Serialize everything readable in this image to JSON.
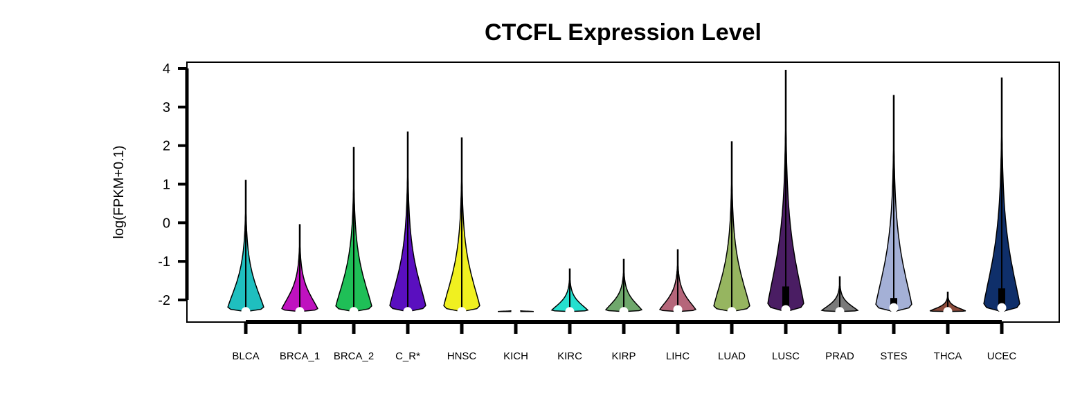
{
  "chart_data": {
    "type": "violin",
    "title": "CTCFL Expression Level",
    "ylabel": "log(FPKM+0.1)",
    "xlabel": "",
    "ylim": [
      -2.55,
      4.2
    ],
    "yticks": [
      -2,
      -1,
      0,
      1,
      2,
      3,
      4
    ],
    "grid": false,
    "legend": "none",
    "groups": [
      {
        "name": "BLCA",
        "color": "#1fbfbf",
        "min": -2.3,
        "max": 1.1,
        "q1": -2.3,
        "median": -2.3,
        "q3": -2.3,
        "peak_width": 0.85
      },
      {
        "name": "BRCA_1",
        "color": "#bf12bf",
        "min": -2.3,
        "max": -0.05,
        "q1": -2.3,
        "median": -2.3,
        "q3": -2.3,
        "peak_width": 0.85
      },
      {
        "name": "BRCA_2",
        "color": "#1fbf57",
        "min": -2.3,
        "max": 1.95,
        "q1": -2.3,
        "median": -2.3,
        "q3": -2.3,
        "peak_width": 0.85
      },
      {
        "name": "C_R*",
        "color": "#5a0fbf",
        "min": -2.3,
        "max": 2.35,
        "q1": -2.3,
        "median": -2.3,
        "q3": -2.3,
        "peak_width": 0.85
      },
      {
        "name": "HNSC",
        "color": "#f0f020",
        "min": -2.3,
        "max": 2.2,
        "q1": -2.3,
        "median": -2.3,
        "q3": -2.3,
        "peak_width": 0.85
      },
      {
        "name": "KICH",
        "color": "#8c8c8c",
        "min": -2.3,
        "max": -2.25,
        "q1": -2.3,
        "median": -2.3,
        "q3": -2.3,
        "peak_width": 0.85
      },
      {
        "name": "KIRC",
        "color": "#25e0cf",
        "min": -2.3,
        "max": -1.2,
        "q1": -2.3,
        "median": -2.3,
        "q3": -2.3,
        "peak_width": 0.85
      },
      {
        "name": "KIRP",
        "color": "#6fa86c",
        "min": -2.3,
        "max": -0.95,
        "q1": -2.3,
        "median": -2.3,
        "q3": -2.3,
        "peak_width": 0.85
      },
      {
        "name": "LIHC",
        "color": "#b5667a",
        "min": -2.3,
        "max": -0.7,
        "q1": -2.3,
        "median": -2.25,
        "q3": -2.2,
        "peak_width": 0.85
      },
      {
        "name": "LUAD",
        "color": "#96b560",
        "min": -2.3,
        "max": 2.1,
        "q1": -2.3,
        "median": -2.3,
        "q3": -2.3,
        "peak_width": 0.85
      },
      {
        "name": "LUSC",
        "color": "#4a1d63",
        "min": -2.3,
        "max": 3.95,
        "q1": -2.3,
        "median": -2.25,
        "q3": -1.65,
        "peak_width": 0.85
      },
      {
        "name": "PRAD",
        "color": "#7a7a7a",
        "min": -2.3,
        "max": -1.4,
        "q1": -2.3,
        "median": -2.3,
        "q3": -2.3,
        "peak_width": 0.85
      },
      {
        "name": "STES",
        "color": "#a4b0d6",
        "min": -2.3,
        "max": 3.3,
        "q1": -2.3,
        "median": -2.2,
        "q3": -1.95,
        "peak_width": 0.85
      },
      {
        "name": "THCA",
        "color": "#8b4a3a",
        "min": -2.3,
        "max": -1.8,
        "q1": -2.3,
        "median": -2.3,
        "q3": -2.3,
        "peak_width": 0.85
      },
      {
        "name": "UCEC",
        "color": "#0f2f6a",
        "min": -2.3,
        "max": 3.75,
        "q1": -2.3,
        "median": -2.2,
        "q3": -1.7,
        "peak_width": 0.85
      }
    ]
  }
}
